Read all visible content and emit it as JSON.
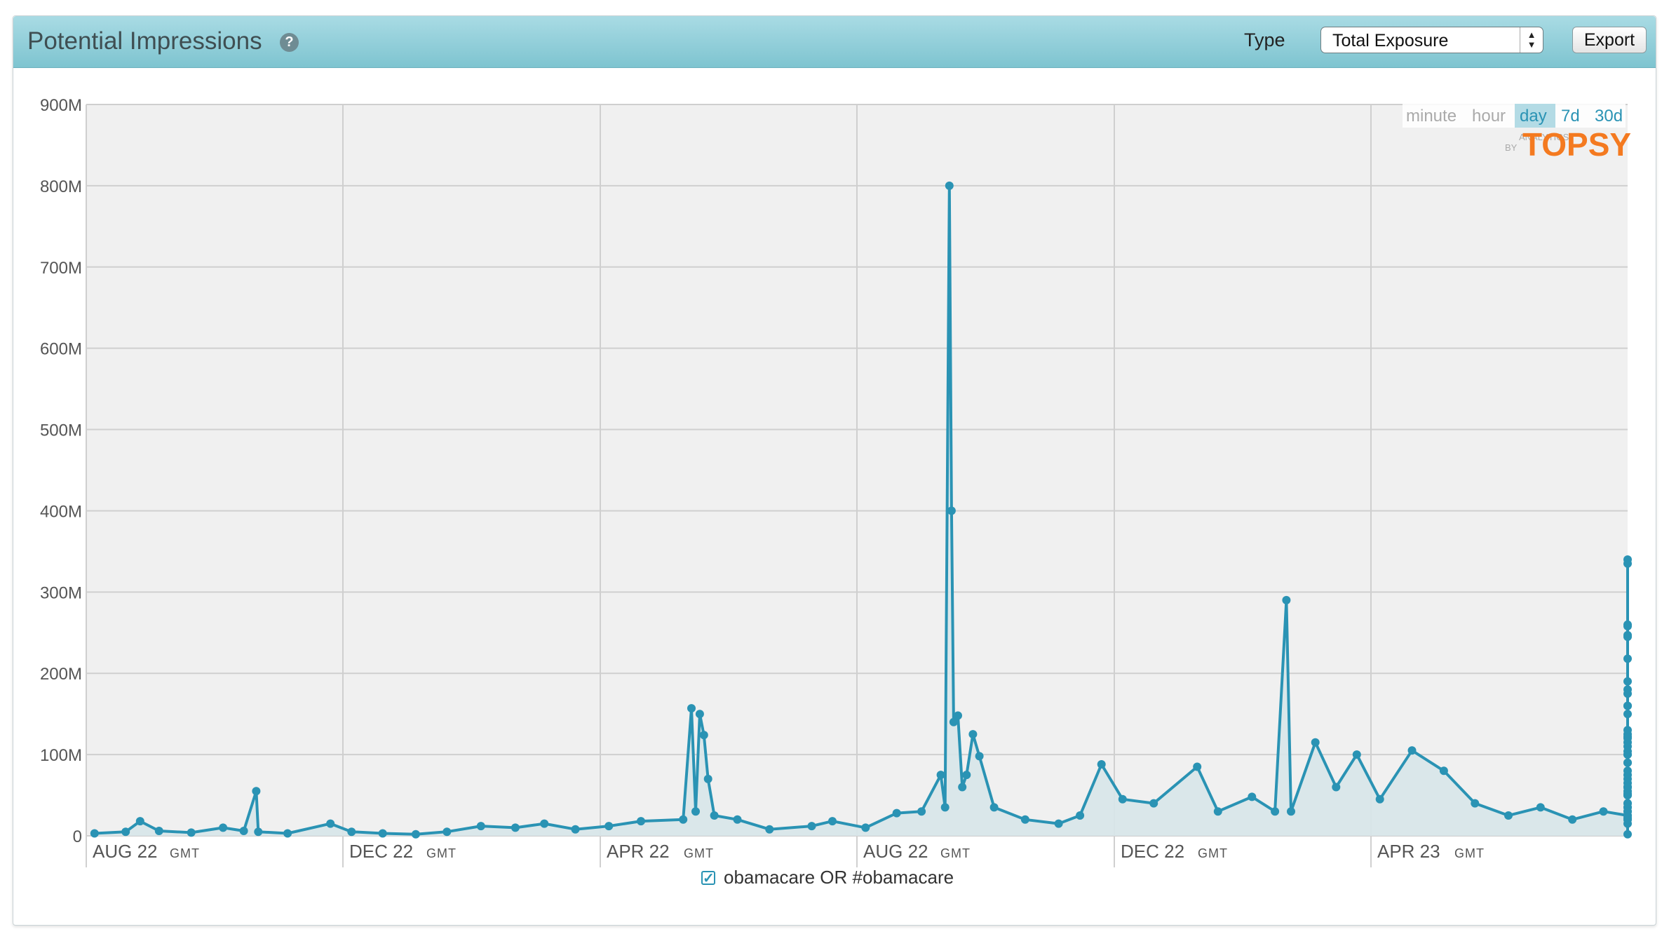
{
  "header": {
    "title": "Potential Impressions",
    "help_icon": "question-circle-icon",
    "type_label": "Type",
    "type_select_value": "Total Exposure",
    "export_label": "Export"
  },
  "resolution": {
    "options": [
      "minute",
      "hour",
      "day",
      "7d",
      "30d"
    ],
    "selected": "day"
  },
  "branding": {
    "small": "ANALYTICS",
    "by": "BY",
    "logo": "TOPSY"
  },
  "legend": {
    "series": "obamacare OR #obamacare",
    "checked": true
  },
  "colors": {
    "series": "#2a93b4",
    "area": "#d7e6e9",
    "plot_bg": "#f0f0f0",
    "header": "#9bd2dc",
    "logo": "#f47a20"
  },
  "chart_data": {
    "type": "line",
    "ylim": [
      0,
      900
    ],
    "yunit": "M",
    "yticks": [
      "0",
      "100M",
      "200M",
      "300M",
      "400M",
      "500M",
      "600M",
      "700M",
      "800M",
      "900M"
    ],
    "xticks": [
      {
        "label": "AUG 22",
        "suffix": "GMT"
      },
      {
        "label": "DEC 22",
        "suffix": "GMT"
      },
      {
        "label": "APR 22",
        "suffix": "GMT"
      },
      {
        "label": "AUG 22",
        "suffix": "GMT"
      },
      {
        "label": "DEC 22",
        "suffix": "GMT"
      },
      {
        "label": "APR 23",
        "suffix": "GMT"
      }
    ],
    "series": [
      {
        "name": "obamacare OR #obamacare",
        "points": [
          [
            "2012-08-05",
            3
          ],
          [
            "2012-08-20",
            5
          ],
          [
            "2012-08-27",
            18
          ],
          [
            "2012-09-05",
            6
          ],
          [
            "2012-09-20",
            4
          ],
          [
            "2012-10-05",
            10
          ],
          [
            "2012-10-15",
            6
          ],
          [
            "2012-10-21",
            55
          ],
          [
            "2012-10-22",
            5
          ],
          [
            "2012-11-05",
            3
          ],
          [
            "2012-11-25",
            15
          ],
          [
            "2012-12-05",
            5
          ],
          [
            "2012-12-20",
            3
          ],
          [
            "2013-01-05",
            2
          ],
          [
            "2013-01-20",
            5
          ],
          [
            "2013-02-05",
            12
          ],
          [
            "2013-02-20",
            10
          ],
          [
            "2013-03-05",
            15
          ],
          [
            "2013-03-20",
            8
          ],
          [
            "2013-04-05",
            12
          ],
          [
            "2013-04-20",
            18
          ],
          [
            "2013-05-10",
            20
          ],
          [
            "2013-05-14",
            157
          ],
          [
            "2013-05-16",
            30
          ],
          [
            "2013-05-18",
            150
          ],
          [
            "2013-05-20",
            124
          ],
          [
            "2013-05-22",
            70
          ],
          [
            "2013-05-25",
            25
          ],
          [
            "2013-06-05",
            20
          ],
          [
            "2013-06-20",
            8
          ],
          [
            "2013-07-10",
            12
          ],
          [
            "2013-07-20",
            18
          ],
          [
            "2013-08-05",
            10
          ],
          [
            "2013-08-20",
            28
          ],
          [
            "2013-09-01",
            30
          ],
          [
            "2013-09-10",
            75
          ],
          [
            "2013-09-12",
            35
          ],
          [
            "2013-09-14",
            800
          ],
          [
            "2013-09-15",
            400
          ],
          [
            "2013-09-16",
            140
          ],
          [
            "2013-09-18",
            148
          ],
          [
            "2013-09-20",
            60
          ],
          [
            "2013-09-22",
            75
          ],
          [
            "2013-09-25",
            125
          ],
          [
            "2013-09-28",
            98
          ],
          [
            "2013-10-05",
            35
          ],
          [
            "2013-10-20",
            20
          ],
          [
            "2013-11-05",
            15
          ],
          [
            "2013-11-15",
            25
          ],
          [
            "2013-11-25",
            88
          ],
          [
            "2013-12-05",
            45
          ],
          [
            "2013-12-20",
            40
          ],
          [
            "2014-01-10",
            85
          ],
          [
            "2014-01-20",
            30
          ],
          [
            "2014-02-05",
            48
          ],
          [
            "2014-02-15",
            30
          ],
          [
            "2014-02-20",
            290
          ],
          [
            "2014-02-22",
            30
          ],
          [
            "2014-03-05",
            115
          ],
          [
            "2014-03-15",
            60
          ],
          [
            "2014-03-25",
            100
          ],
          [
            "2014-04-05",
            45
          ],
          [
            "2014-04-20",
            105
          ],
          [
            "2014-05-05",
            80
          ],
          [
            "2014-05-20",
            40
          ],
          [
            "2014-06-05",
            25
          ],
          [
            "2014-06-20",
            35
          ],
          [
            "2014-07-05",
            20
          ],
          [
            "2014-07-20",
            30
          ],
          [
            "2014-08-05",
            25
          ],
          [
            "2014-08-20",
            30
          ],
          [
            "2014-09-05",
            20
          ],
          [
            "2014-09-20",
            35
          ],
          [
            "2014-10-05",
            25
          ],
          [
            "2014-10-20",
            35
          ],
          [
            "2014-11-05",
            30
          ],
          [
            "2014-11-20",
            15
          ],
          [
            "2014-12-05",
            20
          ],
          [
            "2014-12-20",
            40
          ],
          [
            "2015-01-05",
            22
          ],
          [
            "2015-01-20",
            100
          ],
          [
            "2015-01-25",
            60
          ],
          [
            "2015-02-05",
            104
          ],
          [
            "2015-02-10",
            50
          ],
          [
            "2015-02-18",
            125
          ],
          [
            "2015-02-25",
            60
          ],
          [
            "2015-03-10",
            70
          ],
          [
            "2015-03-20",
            40
          ],
          [
            "2015-04-01",
            2
          ],
          [
            "2015-04-05",
            110
          ],
          [
            "2015-04-10",
            122
          ],
          [
            "2015-04-20",
            55
          ],
          [
            "2015-05-05",
            90
          ],
          [
            "2015-05-10",
            180
          ],
          [
            "2015-05-20",
            50
          ],
          [
            "2015-06-05",
            75
          ],
          [
            "2015-06-15",
            247
          ],
          [
            "2015-06-20",
            60
          ],
          [
            "2015-07-05",
            115
          ],
          [
            "2015-07-15",
            80
          ],
          [
            "2015-08-01",
            245
          ],
          [
            "2015-08-05",
            65
          ],
          [
            "2015-08-20",
            130
          ],
          [
            "2015-09-01",
            160
          ],
          [
            "2015-09-05",
            90
          ],
          [
            "2015-09-15",
            340
          ],
          [
            "2015-09-20",
            60
          ],
          [
            "2015-09-25",
            175
          ],
          [
            "2015-10-01",
            218
          ],
          [
            "2015-10-05",
            100
          ],
          [
            "2015-10-08",
            335
          ],
          [
            "2015-10-12",
            120
          ],
          [
            "2015-10-18",
            150
          ],
          [
            "2015-10-25",
            160
          ],
          [
            "2015-11-01",
            258
          ],
          [
            "2015-11-05",
            60
          ],
          [
            "2015-11-10",
            190
          ],
          [
            "2015-11-13",
            260
          ],
          [
            "2015-11-16",
            52
          ]
        ]
      }
    ]
  }
}
